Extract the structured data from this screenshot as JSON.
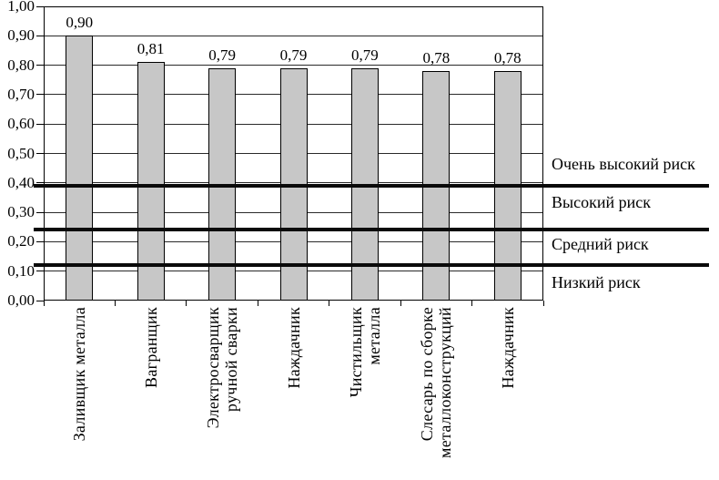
{
  "chart_data": {
    "type": "bar",
    "title": "",
    "xlabel": "",
    "ylabel": "",
    "grid": true,
    "legend_position": "none",
    "ylim": [
      0,
      1
    ],
    "ytick_step": 0.1,
    "ytick_labels": [
      "0,00",
      "0,10",
      "0,20",
      "0,30",
      "0,40",
      "0,50",
      "0,60",
      "0,70",
      "0,80",
      "0,90",
      "1,00"
    ],
    "categories": [
      {
        "lines": [
          "Заливщик металла"
        ]
      },
      {
        "lines": [
          "Вагранщик"
        ]
      },
      {
        "lines": [
          "Электросварщик",
          "ручной сварки"
        ]
      },
      {
        "lines": [
          "Наждачник"
        ]
      },
      {
        "lines": [
          "Чистильщик",
          "металла"
        ]
      },
      {
        "lines": [
          "Слесарь по сборке",
          "металлоконструкций"
        ]
      },
      {
        "lines": [
          "Наждачник"
        ]
      }
    ],
    "values": [
      0.9,
      0.81,
      0.79,
      0.79,
      0.79,
      0.78,
      0.78
    ],
    "value_labels": [
      "0,90",
      "0,81",
      "0,79",
      "0,79",
      "0,79",
      "0,78",
      "0,78"
    ],
    "bar_color": "#c7c7c7",
    "bar_border_color": "#000000",
    "threshold_lines": [
      {
        "value": 0.39
      },
      {
        "value": 0.24
      },
      {
        "value": 0.12
      }
    ],
    "risk_zone_labels": [
      {
        "label": "Очень высокий риск",
        "label_center_value": 0.46
      },
      {
        "label": "Высокий риск",
        "label_center_value": 0.33
      },
      {
        "label": "Средний риск",
        "label_center_value": 0.19
      },
      {
        "label": "Низкий риск",
        "label_center_value": 0.06
      }
    ]
  }
}
